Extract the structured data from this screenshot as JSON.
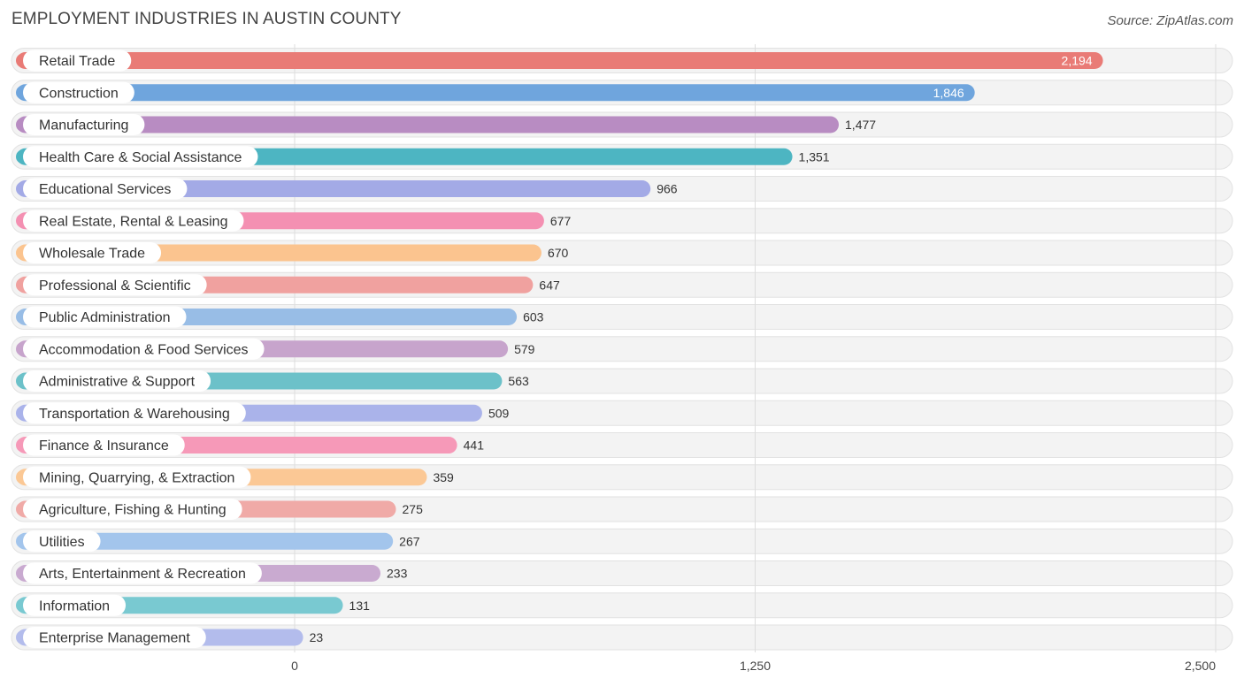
{
  "header": {
    "title": "EMPLOYMENT INDUSTRIES IN AUSTIN COUNTY",
    "source": "Source: ZipAtlas.com"
  },
  "chart_data": {
    "type": "bar",
    "orientation": "horizontal",
    "title": "EMPLOYMENT INDUSTRIES IN AUSTIN COUNTY",
    "xlabel": "",
    "ylabel": "",
    "xlim": [
      0,
      2500
    ],
    "ticks": [
      0,
      1250,
      2500
    ],
    "tick_labels": [
      "0",
      "1,250",
      "2,500"
    ],
    "grid": true,
    "categories": [
      "Retail Trade",
      "Construction",
      "Manufacturing",
      "Health Care & Social Assistance",
      "Educational Services",
      "Real Estate, Rental & Leasing",
      "Wholesale Trade",
      "Professional & Scientific",
      "Public Administration",
      "Accommodation & Food Services",
      "Administrative & Support",
      "Transportation & Warehousing",
      "Finance & Insurance",
      "Mining, Quarrying, & Extraction",
      "Agriculture, Fishing & Hunting",
      "Utilities",
      "Arts, Entertainment & Recreation",
      "Information",
      "Enterprise Management"
    ],
    "values": [
      2194,
      1846,
      1477,
      1351,
      966,
      677,
      670,
      647,
      603,
      579,
      563,
      509,
      441,
      359,
      275,
      267,
      233,
      131,
      23
    ],
    "value_labels": [
      "2,194",
      "1,846",
      "1,477",
      "1,351",
      "966",
      "677",
      "670",
      "647",
      "603",
      "579",
      "563",
      "509",
      "441",
      "359",
      "275",
      "267",
      "233",
      "131",
      "23"
    ],
    "colors": [
      "#e97b76",
      "#6fa5dd",
      "#b88cc2",
      "#4db5c2",
      "#a3aae6",
      "#f490b2",
      "#fbc48f",
      "#f0a19f",
      "#98bde6",
      "#c7a4cc",
      "#6cc1c9",
      "#aab3ea",
      "#f699b8",
      "#fbc895",
      "#f0aaa7",
      "#a3c5ec",
      "#c9aad0",
      "#79c9d1",
      "#b3bcec"
    ]
  }
}
